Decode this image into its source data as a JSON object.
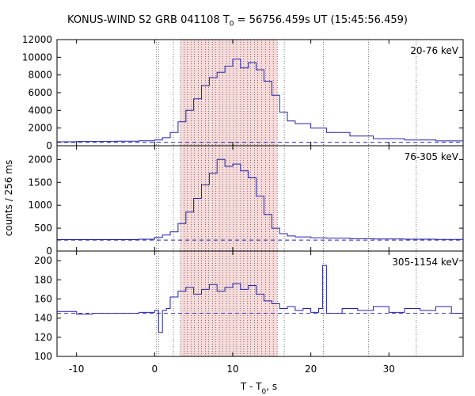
{
  "chart_data": {
    "type": "line",
    "title": "KONUS-WIND S2 GRB 041108 T",
    "title_sub": "0",
    "title_rest": " = 56756.459s UT (15:45:56.459)",
    "xlabel": "T - T",
    "xlabel_sub": "0",
    "xlabel_rest": ", s",
    "ylabel": "counts / 256 ms",
    "xlim": [
      -12.5,
      39.5
    ],
    "x_ticks": [
      -10,
      0,
      10,
      20,
      30
    ],
    "x_tick_labels": [
      "-10",
      "0",
      "10",
      "20",
      "30"
    ],
    "shaded_interval": [
      3.3,
      15.7
    ],
    "vertical_markers": [
      0.2,
      0.5,
      2.4,
      3.3,
      3.8,
      4.2,
      4.7,
      5.1,
      5.6,
      6.0,
      6.5,
      6.9,
      7.4,
      7.8,
      8.3,
      8.7,
      9.2,
      9.6,
      10.1,
      10.5,
      11.0,
      11.4,
      11.9,
      12.3,
      12.8,
      13.2,
      13.7,
      14.2,
      14.7,
      15.2,
      15.7,
      16.6,
      21.6,
      27.4,
      33.5
    ],
    "line_color": "#2222aa",
    "shade_color": "#f7dada",
    "panels": [
      {
        "name": "20-76 keV",
        "ylim": [
          0,
          12000
        ],
        "y_ticks": [
          0,
          2000,
          4000,
          6000,
          8000,
          10000,
          12000
        ],
        "y_tick_labels": [
          "0",
          "2000",
          "4000",
          "6000",
          "8000",
          "10000",
          "12000"
        ],
        "background": 380,
        "x": [
          -12.5,
          -10,
          -5,
          -2,
          0,
          1,
          2,
          3,
          4,
          5,
          6,
          7,
          8,
          9,
          10,
          11,
          12,
          13,
          14,
          15,
          16,
          17,
          18,
          20,
          22,
          25,
          28,
          32,
          36,
          39.5
        ],
        "y": [
          450,
          480,
          520,
          560,
          650,
          900,
          1500,
          2700,
          4000,
          5300,
          6800,
          7700,
          8300,
          9000,
          9800,
          8800,
          9400,
          8600,
          7300,
          5700,
          3800,
          2800,
          2500,
          2000,
          1500,
          1100,
          800,
          650,
          550,
          500
        ]
      },
      {
        "name": "76-305 keV",
        "ylim": [
          0,
          2300
        ],
        "y_ticks": [
          0,
          500,
          1000,
          1500,
          2000
        ],
        "y_tick_labels": [
          "0",
          "500",
          "1000",
          "1500",
          "2000"
        ],
        "background": 240,
        "x": [
          -12.5,
          -5,
          -2,
          0,
          1,
          2,
          3,
          4,
          5,
          6,
          7,
          8,
          9,
          10,
          11,
          12,
          13,
          14,
          15,
          16,
          17,
          18,
          20,
          22,
          25,
          28,
          32,
          36,
          39.5
        ],
        "y": [
          250,
          250,
          260,
          300,
          350,
          420,
          600,
          850,
          1150,
          1450,
          1700,
          2000,
          1850,
          1900,
          1750,
          1600,
          1200,
          800,
          500,
          380,
          330,
          310,
          290,
          280,
          270,
          265,
          260,
          255,
          250
        ]
      },
      {
        "name": "305-1154 keV",
        "ylim": [
          100,
          210
        ],
        "y_ticks": [
          100,
          120,
          140,
          160,
          180,
          200
        ],
        "y_tick_labels": [
          "100",
          "120",
          "140",
          "160",
          "180",
          "200"
        ],
        "background": 145,
        "x": [
          -12.5,
          -10,
          -8,
          -5,
          -2,
          0,
          0.5,
          1,
          1.5,
          2,
          3,
          4,
          5,
          6,
          7,
          8,
          9,
          10,
          11,
          12,
          13,
          14,
          15,
          16,
          17,
          18,
          19,
          20,
          21,
          21.5,
          22,
          24,
          26,
          28,
          30,
          32,
          34,
          36,
          38,
          39.5
        ],
        "y": [
          147,
          144,
          145,
          145,
          146,
          148,
          125,
          148,
          150,
          162,
          168,
          172,
          165,
          170,
          175,
          168,
          172,
          176,
          170,
          174,
          165,
          158,
          155,
          150,
          152,
          148,
          150,
          146,
          150,
          195,
          145,
          150,
          148,
          152,
          146,
          150,
          148,
          152,
          145,
          147
        ]
      }
    ]
  }
}
